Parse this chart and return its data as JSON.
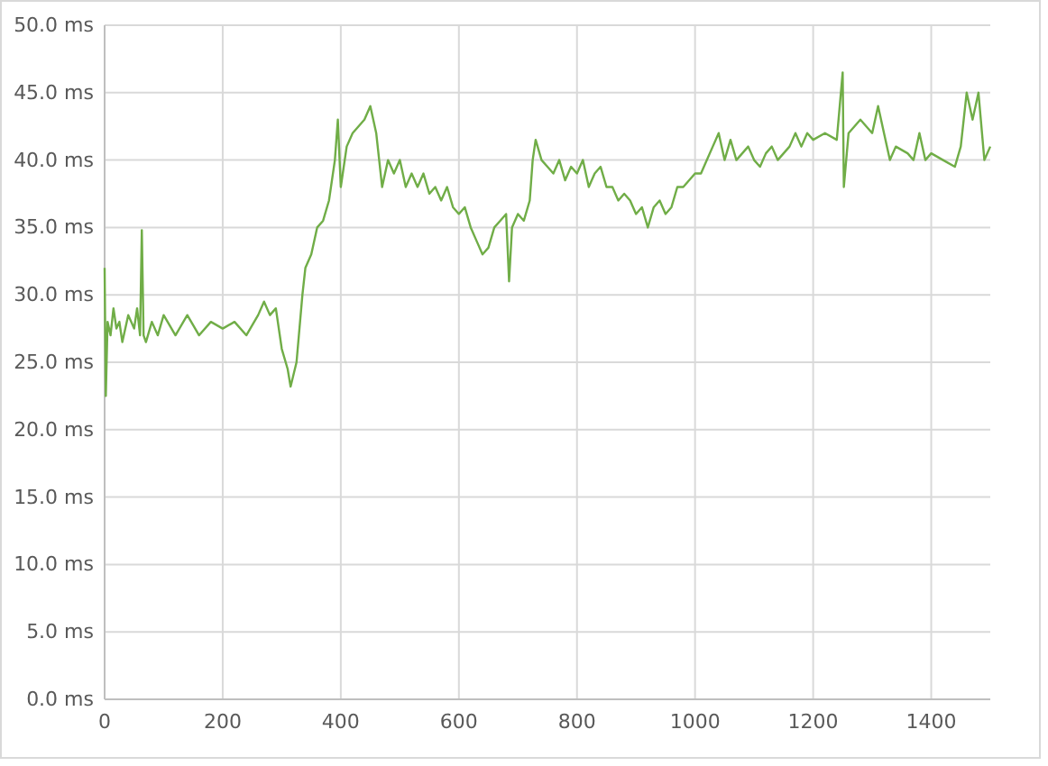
{
  "chart_data": {
    "type": "line",
    "x": [
      0,
      2,
      5,
      10,
      15,
      20,
      25,
      30,
      40,
      50,
      55,
      60,
      63,
      66,
      70,
      80,
      90,
      100,
      120,
      140,
      160,
      180,
      200,
      220,
      240,
      260,
      270,
      280,
      290,
      300,
      310,
      315,
      325,
      335,
      340,
      350,
      360,
      370,
      380,
      390,
      395,
      400,
      410,
      420,
      430,
      440,
      450,
      460,
      465,
      470,
      480,
      490,
      500,
      510,
      520,
      530,
      540,
      550,
      560,
      570,
      580,
      590,
      600,
      610,
      620,
      630,
      640,
      650,
      660,
      670,
      680,
      685,
      690,
      700,
      710,
      720,
      725,
      730,
      740,
      750,
      760,
      770,
      780,
      790,
      800,
      810,
      820,
      830,
      840,
      850,
      860,
      870,
      880,
      890,
      900,
      910,
      920,
      930,
      940,
      950,
      960,
      970,
      980,
      990,
      1000,
      1010,
      1020,
      1030,
      1040,
      1050,
      1060,
      1070,
      1080,
      1090,
      1100,
      1110,
      1120,
      1130,
      1140,
      1150,
      1160,
      1170,
      1180,
      1190,
      1200,
      1220,
      1240,
      1250,
      1252,
      1260,
      1280,
      1300,
      1310,
      1320,
      1330,
      1340,
      1360,
      1370,
      1380,
      1390,
      1400,
      1420,
      1440,
      1450,
      1460,
      1470,
      1480,
      1490,
      1500
    ],
    "series": [
      {
        "color": "#70ad47",
        "values": [
          32,
          22.5,
          28,
          27,
          29,
          27.5,
          28,
          26.5,
          28.5,
          27.5,
          29,
          27,
          34.8,
          27,
          26.5,
          28,
          27,
          28.5,
          27,
          28.5,
          27,
          28,
          27.5,
          28,
          27,
          28.5,
          29.5,
          28.5,
          29,
          26,
          24.5,
          23.2,
          25,
          30,
          32,
          33,
          35,
          35.5,
          37,
          40,
          43,
          38,
          41,
          42,
          42.5,
          43,
          44,
          42,
          40,
          38,
          40,
          39,
          40,
          38,
          39,
          38,
          39,
          37.5,
          38,
          37,
          38,
          36.5,
          36,
          36.5,
          35,
          34,
          33,
          33.5,
          35,
          35.5,
          36,
          31,
          35,
          36,
          35.5,
          37,
          40,
          41.5,
          40,
          39.5,
          39,
          40,
          38.5,
          39.5,
          39,
          40,
          38,
          39,
          39.5,
          38,
          38,
          37,
          37.5,
          37,
          36,
          36.5,
          35,
          36.5,
          37,
          36,
          36.5,
          38,
          38,
          38.5,
          39,
          39,
          40,
          41,
          42,
          40,
          41.5,
          40,
          40.5,
          41,
          40,
          39.5,
          40.5,
          41,
          40,
          40.5,
          41,
          42,
          41,
          42,
          41.5,
          42,
          41.5,
          46.5,
          38,
          42,
          43,
          42,
          44,
          42,
          40,
          41,
          40.5,
          40,
          42,
          40,
          40.5,
          40,
          39.5,
          41,
          45,
          43,
          45,
          40,
          41
        ]
      }
    ],
    "xlim": [
      0,
      1500
    ],
    "xticks": [
      0,
      200,
      400,
      600,
      800,
      1000,
      1200,
      1400
    ],
    "ylim": [
      0,
      50
    ],
    "yticks": [
      {
        "value": 0,
        "label": "0.0 ms"
      },
      {
        "value": 5,
        "label": "5.0 ms"
      },
      {
        "value": 10,
        "label": "10.0 ms"
      },
      {
        "value": 15,
        "label": "15.0 ms"
      },
      {
        "value": 20,
        "label": "20.0 ms"
      },
      {
        "value": 25,
        "label": "25.0 ms"
      },
      {
        "value": 30,
        "label": "30.0 ms"
      },
      {
        "value": 35,
        "label": "35.0 ms"
      },
      {
        "value": 40,
        "label": "40.0 ms"
      },
      {
        "value": 45,
        "label": "45.0 ms"
      },
      {
        "value": 50,
        "label": "50.0 ms"
      }
    ],
    "grid": true,
    "marker": "none",
    "line_style": "solid"
  }
}
